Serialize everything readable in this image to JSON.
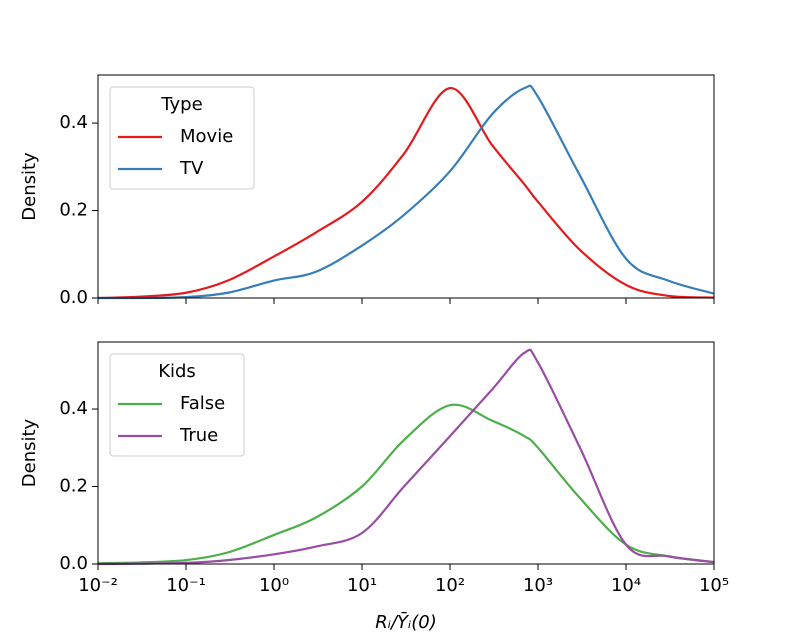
{
  "chart_data": [
    {
      "type": "line",
      "ylabel": "Density",
      "legend_title": "Type",
      "legend": "upper left",
      "xscale": "log",
      "sharex": true,
      "x": [
        0.01,
        0.03,
        0.1,
        0.3,
        1,
        3,
        10,
        30,
        100,
        300,
        700,
        1000,
        3000,
        10000,
        30000,
        100000
      ],
      "series": [
        {
          "name": "Movie",
          "color": "#e41a1c",
          "values": [
            0,
            0.003,
            0.012,
            0.04,
            0.095,
            0.15,
            0.22,
            0.33,
            0.48,
            0.35,
            0.26,
            0.22,
            0.11,
            0.03,
            0.005,
            0.001
          ]
        },
        {
          "name": "TV",
          "color": "#377eb8",
          "values": [
            0,
            0,
            0.002,
            0.012,
            0.04,
            0.06,
            0.12,
            0.19,
            0.29,
            0.42,
            0.48,
            0.46,
            0.28,
            0.09,
            0.04,
            0.01
          ]
        }
      ],
      "xlim": [
        0.01,
        100000
      ],
      "ylim": [
        0,
        0.51
      ],
      "yticks": [
        {
          "value": 0,
          "label": "0.0"
        },
        0.2,
        0.4
      ]
    },
    {
      "type": "line",
      "ylabel": "Density",
      "xlabel": "Rᵢ/Ȳᵢ(0)",
      "legend_title": "Kids",
      "legend": "upper left",
      "xscale": "log",
      "x": [
        0.01,
        0.03,
        0.1,
        0.3,
        1,
        3,
        10,
        30,
        100,
        300,
        700,
        1000,
        3000,
        10000,
        30000,
        100000
      ],
      "series": [
        {
          "name": "False",
          "color": "#4daf4a",
          "values": [
            0.002,
            0.004,
            0.01,
            0.03,
            0.075,
            0.12,
            0.2,
            0.32,
            0.41,
            0.37,
            0.33,
            0.3,
            0.17,
            0.05,
            0.02,
            0.005
          ]
        },
        {
          "name": "True",
          "color": "#984ea3",
          "values": [
            0,
            0.001,
            0.003,
            0.01,
            0.025,
            0.045,
            0.08,
            0.2,
            0.33,
            0.45,
            0.545,
            0.52,
            0.3,
            0.05,
            0.02,
            0.005
          ]
        }
      ],
      "xlim": [
        0.01,
        100000
      ],
      "ylim": [
        0,
        0.573
      ],
      "yticks": [
        {
          "value": 0,
          "label": "0.0"
        },
        0.2,
        0.4
      ],
      "xticks": [
        {
          "value": 0.01,
          "label": "10⁻²"
        },
        {
          "value": 0.1,
          "label": "10⁻¹"
        },
        {
          "value": 1,
          "label": "10⁰"
        },
        {
          "value": 10,
          "label": "10¹"
        },
        {
          "value": 100,
          "label": "10²"
        },
        {
          "value": 1000,
          "label": "10³"
        },
        {
          "value": 10000,
          "label": "10⁴"
        },
        {
          "value": 100000,
          "label": "10⁵"
        }
      ]
    }
  ]
}
